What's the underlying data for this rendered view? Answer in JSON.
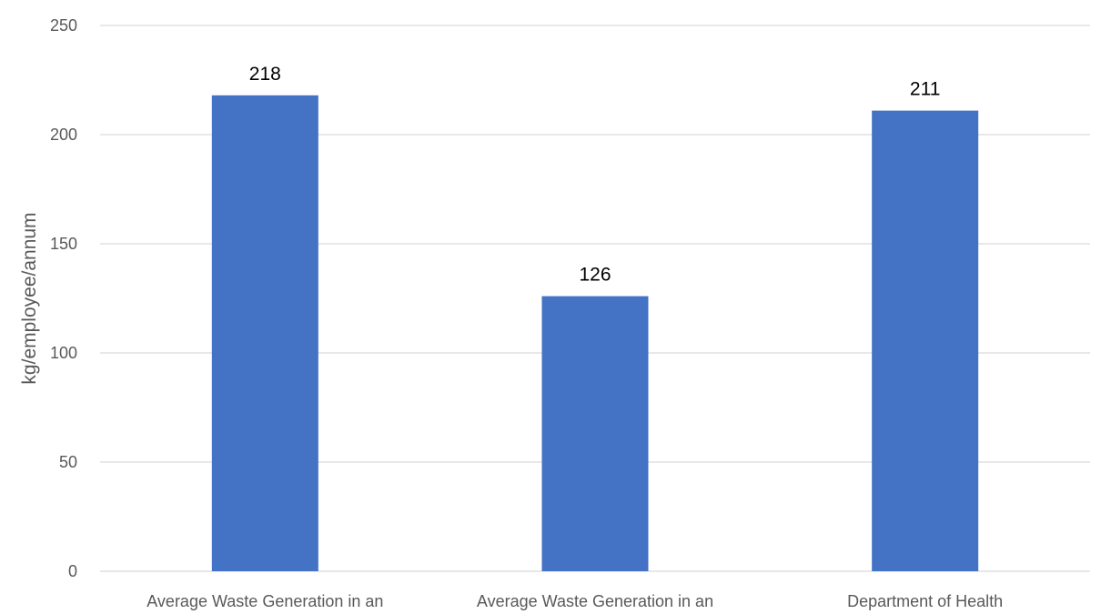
{
  "chart_data": {
    "type": "bar",
    "categories": [
      "Average Waste Generation in an",
      "Average Waste Generation in an",
      "Department of Health"
    ],
    "values": [
      218,
      126,
      211
    ],
    "title": "",
    "xlabel": "",
    "ylabel": "kg/employee/annum",
    "ylim": [
      0,
      250
    ],
    "yticks": [
      0,
      50,
      100,
      150,
      200,
      250
    ],
    "grid": true,
    "data_labels": true,
    "bar_color": "#4472c4"
  }
}
